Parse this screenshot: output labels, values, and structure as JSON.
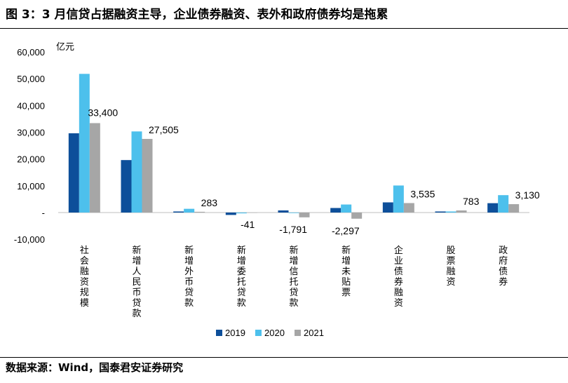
{
  "figure": {
    "title": "图 3：3 月信贷占据融资主导，企业债券融资、表外和政府债券均是拖累",
    "source": "数据来源：Wind，国泰君安证券研究"
  },
  "chart_data": {
    "type": "bar",
    "title": "",
    "ylabel": "亿元",
    "xlabel": "",
    "ylim": [
      -10000,
      60000
    ],
    "yticks": [
      -10000,
      0,
      10000,
      20000,
      30000,
      40000,
      50000,
      60000
    ],
    "ytick_labels": [
      "-10,000",
      "-",
      "10,000",
      "20,000",
      "30,000",
      "40,000",
      "50,000",
      "60,000"
    ],
    "grid": false,
    "legend_position": "bottom-center",
    "categories": [
      "社会融资规模",
      "新增人民币贷款",
      "新增外币贷款",
      "新增委托贷款",
      "新增信托贷款",
      "新增未贴票",
      "企业债券融资",
      "股票融资",
      "政府债券"
    ],
    "series": [
      {
        "name": "2019",
        "color": "#0d4f9a",
        "values": [
          29600,
          19600,
          400,
          -900,
          800,
          1700,
          3800,
          400,
          3500
        ]
      },
      {
        "name": "2020",
        "color": "#4dc0ec",
        "values": [
          51800,
          30300,
          1400,
          -300,
          -200,
          3000,
          10100,
          400,
          6500
        ]
      },
      {
        "name": "2021",
        "color": "#a6a6a6",
        "values": [
          33400,
          27505,
          283,
          -41,
          -1791,
          -2297,
          3535,
          783,
          3130
        ]
      }
    ],
    "data_labels": [
      {
        "category": "社会融资规模",
        "series": "2021",
        "text": "33,400"
      },
      {
        "category": "新增人民币贷款",
        "series": "2021",
        "text": "27,505"
      },
      {
        "category": "新增外币贷款",
        "series": "2021",
        "text": "283"
      },
      {
        "category": "新增委托贷款",
        "series": "2021",
        "text": "-41"
      },
      {
        "category": "新增信托贷款",
        "series": "2021",
        "text": "-1,791"
      },
      {
        "category": "新增未贴票",
        "series": "2021",
        "text": "-2,297"
      },
      {
        "category": "企业债券融资",
        "series": "2021",
        "text": "3,535"
      },
      {
        "category": "股票融资",
        "series": "2021",
        "text": "783"
      },
      {
        "category": "政府债券",
        "series": "2021",
        "text": "3,130"
      }
    ]
  }
}
